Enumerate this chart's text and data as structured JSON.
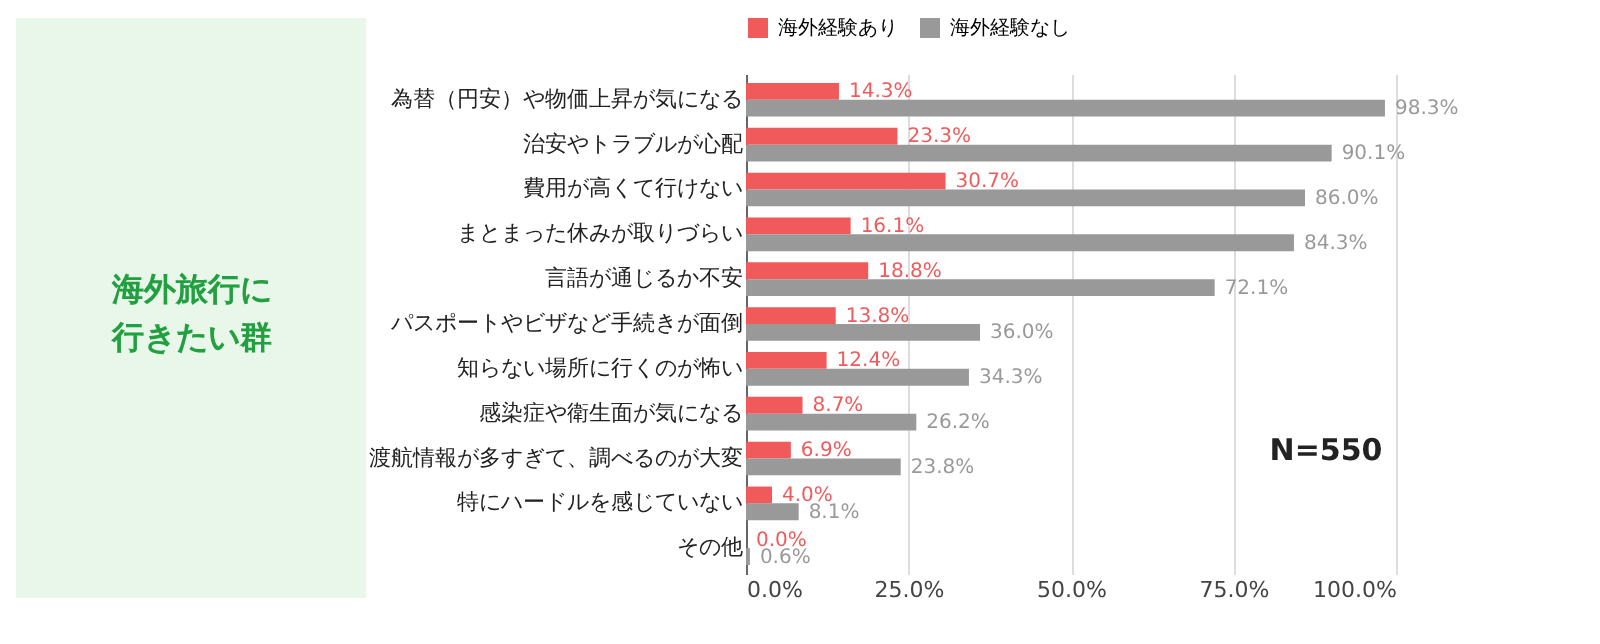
{
  "chart_data": {
    "type": "bar",
    "orientation": "horizontal",
    "categories": [
      "為替（円安）や物価上昇が気になる",
      "治安やトラブルが心配",
      "費用が高くて行けない",
      "まとまった休みが取りづらい",
      "言語が通じるか不安",
      "パスポートやビザなど手続きが面倒",
      "知らない場所に行くのが怖い",
      "感染症や衛生面が気になる",
      "渡航情報が多すぎて、調べるのが大変",
      "特にハードルを感じていない",
      "その他"
    ],
    "series": [
      {
        "name": "海外経験あり",
        "color": "#f05a5b",
        "values": [
          14.3,
          23.3,
          30.7,
          16.1,
          18.8,
          13.8,
          12.4,
          8.7,
          6.9,
          4.0,
          0.0
        ],
        "value_labels": [
          "14.3%",
          "23.3%",
          "30.7%",
          "16.1%",
          "18.8%",
          "13.8%",
          "12.4%",
          "8.7%",
          "6.9%",
          "4.0%",
          "0.0%"
        ]
      },
      {
        "name": "海外経験なし",
        "color": "#999999",
        "values": [
          98.3,
          90.1,
          86.0,
          84.3,
          72.1,
          36.0,
          34.3,
          26.2,
          23.8,
          8.1,
          0.6
        ],
        "value_labels": [
          "98.3%",
          "90.1%",
          "86.0%",
          "84.3%",
          "72.1%",
          "36.0%",
          "34.3%",
          "26.2%",
          "23.8%",
          "8.1%",
          "0.6%"
        ]
      }
    ],
    "xlim": [
      0,
      100
    ],
    "xticks": [
      {
        "value": 0,
        "label": "0.0%"
      },
      {
        "value": 25,
        "label": "25.0%"
      },
      {
        "value": 50,
        "label": "50.0%"
      },
      {
        "value": 75,
        "label": "75.0%"
      },
      {
        "value": 100,
        "label": "100.0%"
      }
    ],
    "grid": "x",
    "legend": "top",
    "annotations": [
      "海外旅行に",
      "行きたい群",
      "N=550"
    ]
  }
}
